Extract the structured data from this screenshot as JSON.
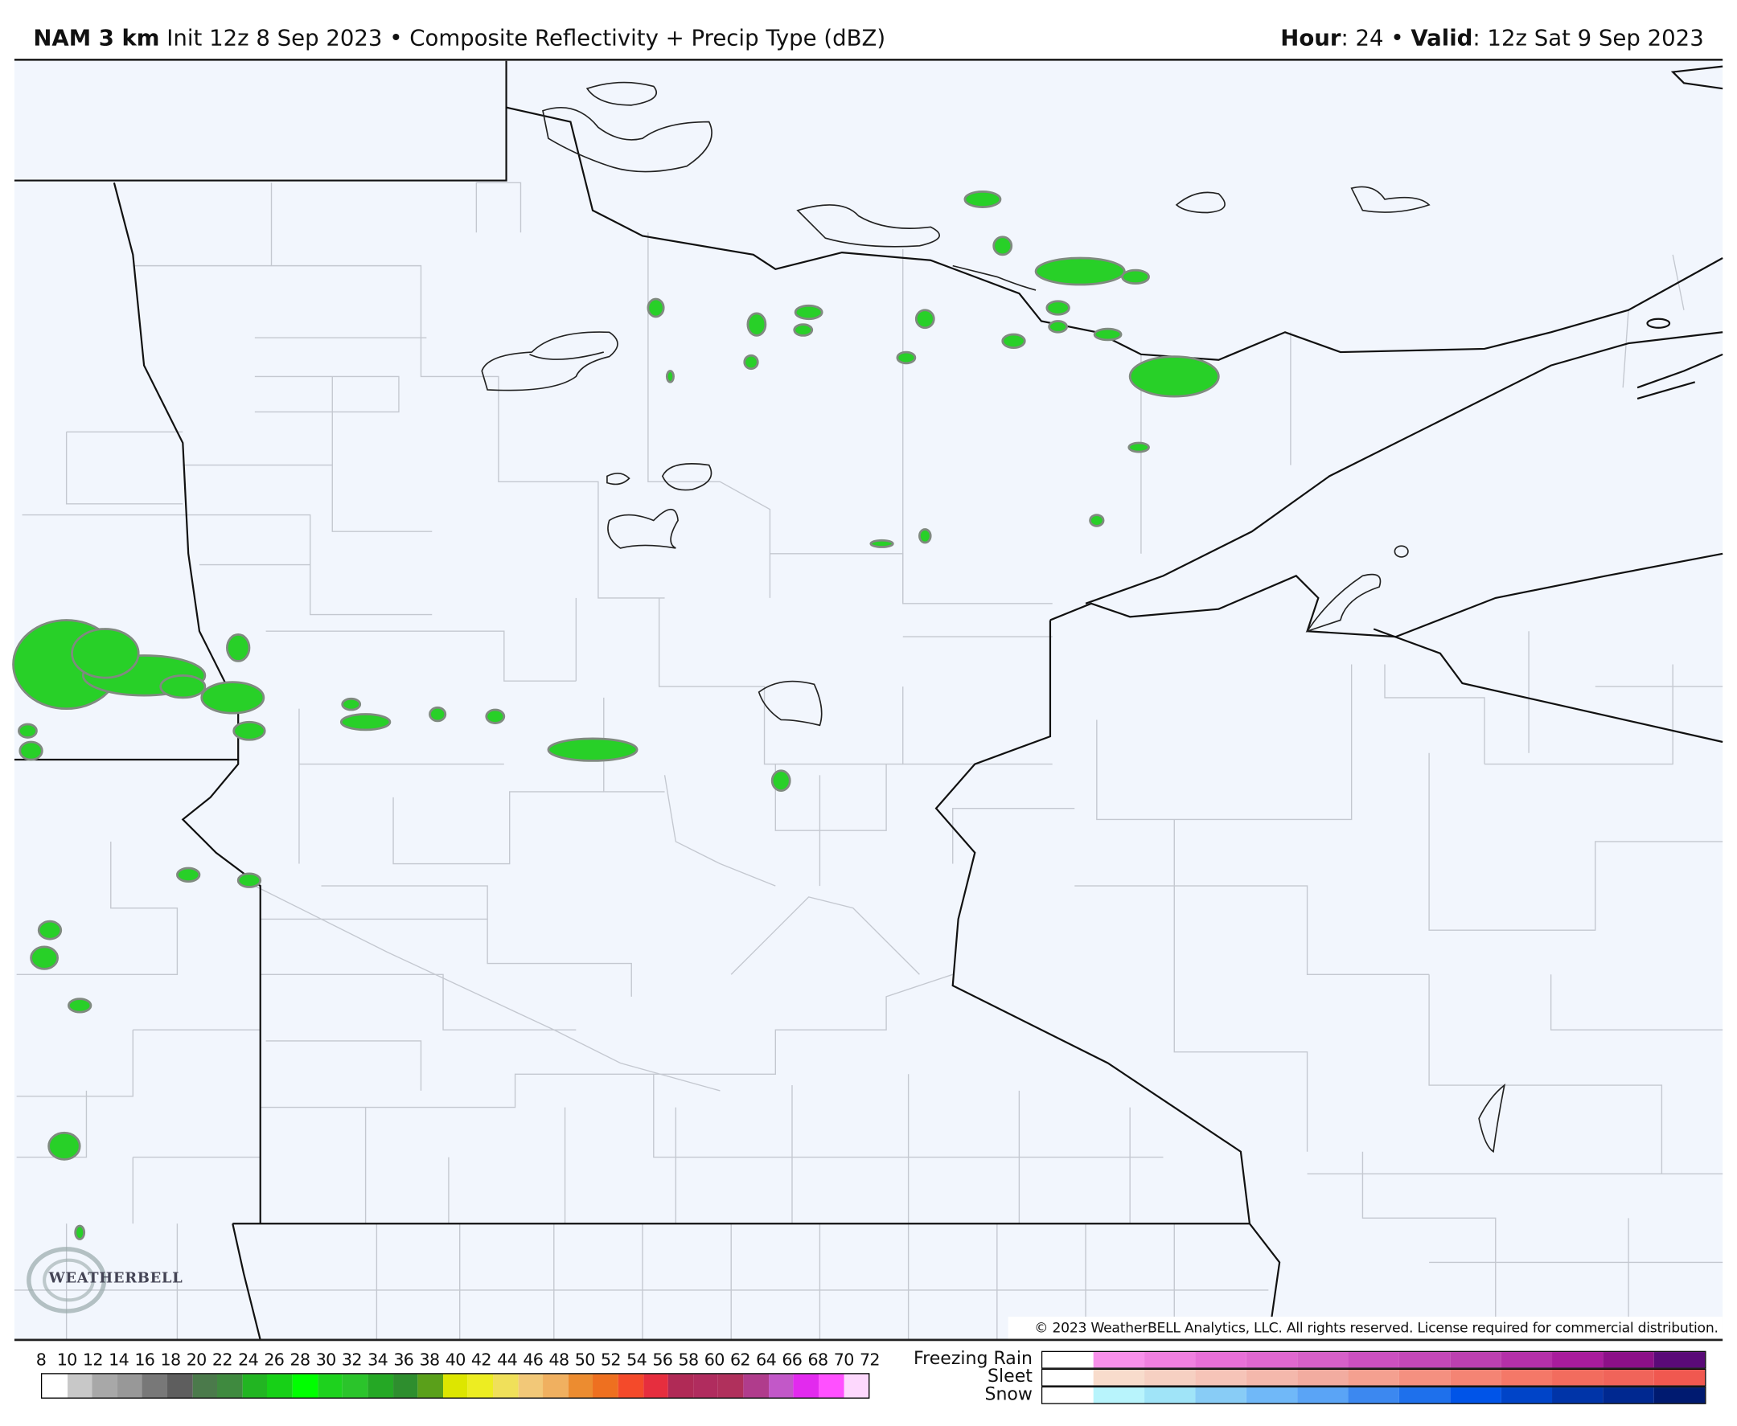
{
  "header": {
    "model": "NAM 3 km",
    "init": "Init 12z 8 Sep 2023",
    "separator": "•",
    "product": "Composite Reflectivity + Precip Type (dBZ)",
    "hour_label": "Hour",
    "hour_value": ": 24",
    "valid_label": "Valid",
    "valid_value": ": 12z Sat 9 Sep 2023"
  },
  "map": {
    "background": "#f2f6fd",
    "region_shown": "Minnesota / Lake Superior",
    "logo_text": "WeatherBELL"
  },
  "copyright": "© 2023 WeatherBELL Analytics, LLC. All rights reserved. License required for commercial distribution.",
  "legend": {
    "reflectivity_labels": [
      "8",
      "10",
      "12",
      "14",
      "16",
      "18",
      "20",
      "22",
      "24",
      "26",
      "28",
      "30",
      "32",
      "34",
      "36",
      "38",
      "40",
      "42",
      "44",
      "46",
      "48",
      "50",
      "52",
      "54",
      "56",
      "58",
      "60",
      "62",
      "64",
      "66",
      "68",
      "70",
      "72"
    ],
    "reflectivity_colors": [
      "#ffffff",
      "#c8c8c8",
      "#a8a8a8",
      "#989898",
      "#787878",
      "#5e5e5e",
      "#4b7a4b",
      "#3f8a3f",
      "#22b522",
      "#17d017",
      "#00ff00",
      "#1ed21e",
      "#2bc42b",
      "#25a825",
      "#2e8e2e",
      "#5aa01a",
      "#dde600",
      "#eded22",
      "#f0e05a",
      "#f2c878",
      "#f0b060",
      "#ec8c30",
      "#ee7020",
      "#f44a2a",
      "#e62e3e",
      "#b02a56",
      "#b02c5e",
      "#b0305c",
      "#b03c8c",
      "#c258c8",
      "#e22aee",
      "#ff50ff",
      "#fdd8fd"
    ],
    "ptype": [
      {
        "label": "Freezing Rain",
        "colors": [
          "#ffffff",
          "#f890ea",
          "#f080e0",
          "#e870d8",
          "#e068d0",
          "#d660c8",
          "#cc50c0",
          "#c448b8",
          "#bc40b0",
          "#b430a8",
          "#a81c9c",
          "#8c1088",
          "#5a0a78"
        ]
      },
      {
        "label": "Sleet",
        "colors": [
          "#ffffff",
          "#f8dccc",
          "#f6d0c2",
          "#f6c4b8",
          "#f4b8ac",
          "#f2aca0",
          "#f4a090",
          "#f49080",
          "#f48474",
          "#f47868",
          "#f26c5e",
          "#f0645a",
          "#f05850"
        ]
      },
      {
        "label": "Snow",
        "colors": [
          "#ffffff",
          "#b8f4fc",
          "#a0e4f8",
          "#88ccf6",
          "#70b8f8",
          "#5aa4f6",
          "#3c88f0",
          "#1e70ec",
          "#0054e8",
          "#0044c8",
          "#0034a8",
          "#002890",
          "#001a70"
        ]
      }
    ]
  }
}
